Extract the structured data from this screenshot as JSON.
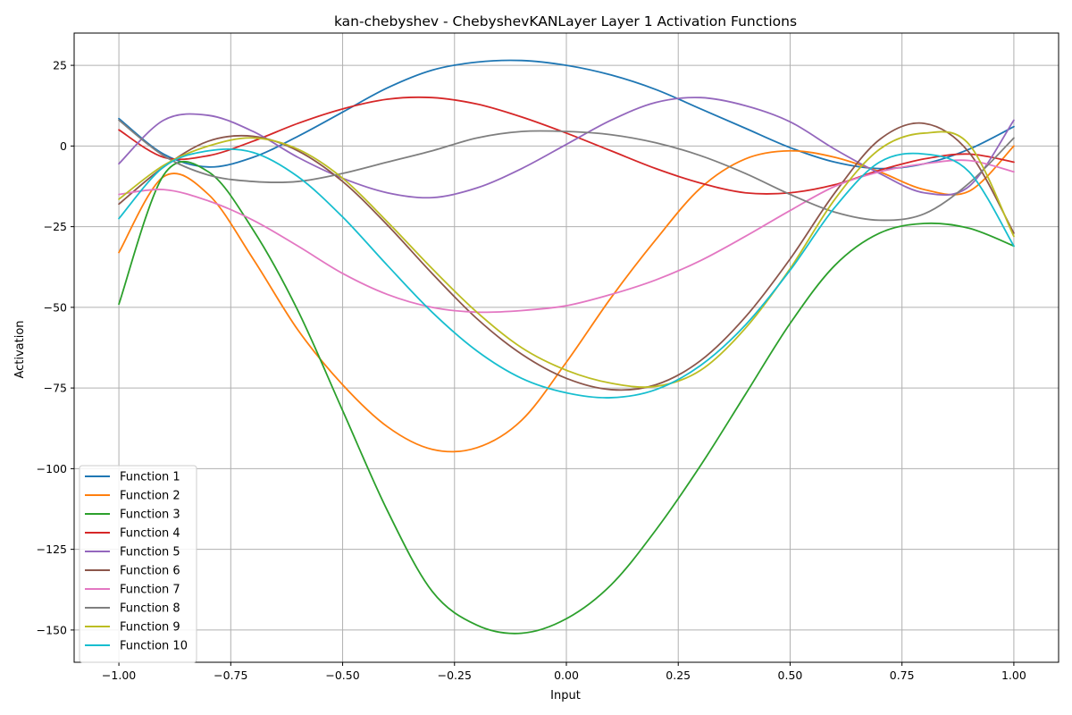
{
  "chart_data": {
    "type": "line",
    "title": "kan-chebyshev - ChebyshevKANLayer Layer 1 Activation Functions",
    "xlabel": "Input",
    "ylabel": "Activation",
    "xlim": [
      -1.1,
      1.1
    ],
    "ylim": [
      -160,
      35
    ],
    "xticks": [
      -1.0,
      -0.75,
      -0.5,
      -0.25,
      0.0,
      0.25,
      0.5,
      0.75,
      1.0
    ],
    "xtick_labels": [
      "−1.00",
      "−0.75",
      "−0.50",
      "−0.25",
      "0.00",
      "0.25",
      "0.50",
      "0.75",
      "1.00"
    ],
    "yticks": [
      25,
      0,
      -25,
      -50,
      -75,
      -100,
      -125,
      -150
    ],
    "ytick_labels": [
      "25",
      "0",
      "−25",
      "−50",
      "−75",
      "−100",
      "−125",
      "−150"
    ],
    "grid": true,
    "legend_position": "lower-left",
    "x": [
      -1.0,
      -0.9,
      -0.8,
      -0.7,
      -0.6,
      -0.5,
      -0.4,
      -0.3,
      -0.2,
      -0.1,
      0.0,
      0.1,
      0.2,
      0.3,
      0.4,
      0.5,
      0.6,
      0.7,
      0.8,
      0.9,
      1.0
    ],
    "series": [
      {
        "name": "Function 1",
        "color": "#1f77b4",
        "values": [
          8.5,
          -2.5,
          -6.5,
          -3.5,
          3.0,
          10.5,
          18.0,
          23.5,
          26.0,
          26.5,
          25.0,
          22.0,
          17.5,
          11.5,
          5.5,
          -0.5,
          -5.0,
          -7.0,
          -5.5,
          -1.0,
          6.0
        ]
      },
      {
        "name": "Function 2",
        "color": "#ff7f0e",
        "values": [
          -33.0,
          -9.5,
          -15.0,
          -35.0,
          -57.0,
          -74.0,
          -87.0,
          -94.0,
          -93.5,
          -85.0,
          -67.0,
          -47.0,
          -29.0,
          -13.0,
          -4.0,
          -1.5,
          -3.5,
          -8.0,
          -13.5,
          -14.0,
          0.0
        ]
      },
      {
        "name": "Function 3",
        "color": "#2ca02c",
        "values": [
          -49.0,
          -9.0,
          -8.0,
          -26.0,
          -51.0,
          -82.0,
          -113.0,
          -138.0,
          -148.5,
          -151.0,
          -146.5,
          -136.0,
          -119.0,
          -99.0,
          -77.0,
          -55.0,
          -37.0,
          -27.0,
          -24.0,
          -25.5,
          -31.0
        ]
      },
      {
        "name": "Function 4",
        "color": "#d62728",
        "values": [
          5.0,
          -3.5,
          -3.0,
          1.5,
          7.0,
          11.5,
          14.5,
          15.0,
          13.0,
          9.0,
          4.0,
          -1.5,
          -7.0,
          -11.5,
          -14.5,
          -14.5,
          -12.0,
          -7.5,
          -4.0,
          -2.5,
          -5.0
        ]
      },
      {
        "name": "Function 5",
        "color": "#9467bd",
        "values": [
          -5.5,
          8.0,
          9.5,
          4.5,
          -3.5,
          -10.0,
          -14.5,
          -16.0,
          -13.0,
          -7.0,
          0.5,
          8.0,
          13.5,
          15.0,
          12.5,
          7.5,
          -1.0,
          -8.5,
          -14.5,
          -12.5,
          8.0
        ]
      },
      {
        "name": "Function 6",
        "color": "#8c564b",
        "values": [
          -18.0,
          -6.5,
          1.5,
          3.0,
          -1.5,
          -11.0,
          -24.5,
          -39.5,
          -53.5,
          -64.5,
          -72.0,
          -75.5,
          -74.0,
          -66.5,
          -53.0,
          -35.0,
          -14.5,
          2.0,
          7.0,
          -2.0,
          -27.0
        ]
      },
      {
        "name": "Function 7",
        "color": "#e377c2",
        "values": [
          -15.0,
          -13.5,
          -17.0,
          -23.0,
          -31.0,
          -39.5,
          -46.0,
          -50.0,
          -51.5,
          -51.0,
          -49.5,
          -46.0,
          -41.5,
          -35.5,
          -28.0,
          -20.0,
          -12.5,
          -8.0,
          -5.5,
          -4.5,
          -8.0
        ]
      },
      {
        "name": "Function 8",
        "color": "#7f7f7f",
        "values": [
          8.0,
          -3.0,
          -9.0,
          -11.0,
          -11.0,
          -8.5,
          -5.0,
          -1.5,
          2.5,
          4.5,
          4.5,
          3.5,
          1.0,
          -3.0,
          -8.5,
          -15.0,
          -20.5,
          -23.0,
          -21.0,
          -11.5,
          2.5
        ]
      },
      {
        "name": "Function 9",
        "color": "#bcbd22",
        "values": [
          -16.5,
          -6.0,
          0.0,
          2.5,
          -1.0,
          -10.0,
          -23.5,
          -38.0,
          -51.5,
          -62.5,
          -69.5,
          -73.5,
          -74.5,
          -69.5,
          -56.5,
          -38.0,
          -16.5,
          -1.0,
          4.0,
          0.5,
          -28.0
        ]
      },
      {
        "name": "Function 10",
        "color": "#17becf",
        "values": [
          -22.5,
          -6.5,
          -1.5,
          -2.0,
          -9.5,
          -22.0,
          -37.0,
          -51.5,
          -63.5,
          -72.0,
          -76.5,
          -78.0,
          -75.5,
          -68.0,
          -55.5,
          -38.5,
          -19.0,
          -5.0,
          -2.5,
          -8.0,
          -31.0
        ]
      }
    ]
  }
}
